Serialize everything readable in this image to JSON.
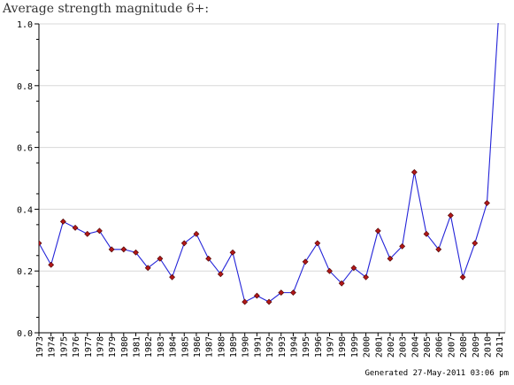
{
  "title": "Average strength magnitude 6+:",
  "footer": "Generated 27-May-2011 03:06 pm",
  "colors": {
    "line": "#2323d8",
    "marker_fill": "#b01818",
    "marker_stroke": "#4a0000",
    "grid": "#d8d8d8",
    "axis": "#000000",
    "plot_background": "#ffffff"
  },
  "chart_data": {
    "type": "line",
    "title": "Average strength magnitude 6+:",
    "xlabel": "",
    "ylabel": "",
    "ylim": [
      0.0,
      1.0
    ],
    "yticks": [
      "0.0",
      "0.2",
      "0.4",
      "0.6",
      "0.8",
      "1.0"
    ],
    "grid": true,
    "x": [
      "1973",
      "1974",
      "1975",
      "1976",
      "1977",
      "1978",
      "1979",
      "1980",
      "1981",
      "1982",
      "1983",
      "1984",
      "1985",
      "1986",
      "1987",
      "1988",
      "1989",
      "1990",
      "1991",
      "1992",
      "1993",
      "1994",
      "1995",
      "1996",
      "1997",
      "1998",
      "1999",
      "2000",
      "2001",
      "2002",
      "2003",
      "2004",
      "2005",
      "2006",
      "2007",
      "2008",
      "2009",
      "2010",
      "2011"
    ],
    "series": [
      {
        "values": [
          0.29,
          0.22,
          0.36,
          0.34,
          0.32,
          0.33,
          0.27,
          0.27,
          0.26,
          0.21,
          0.24,
          0.18,
          0.29,
          0.32,
          0.24,
          0.19,
          0.26,
          0.1,
          0.12,
          0.1,
          0.13,
          0.13,
          0.23,
          0.29,
          0.2,
          0.16,
          0.21,
          0.18,
          0.33,
          0.24,
          0.28,
          0.52,
          0.32,
          0.27,
          0.38,
          0.18,
          0.29,
          0.42,
          1.05
        ]
      }
    ],
    "markers": "diamond",
    "clip_above_ylim": true
  }
}
